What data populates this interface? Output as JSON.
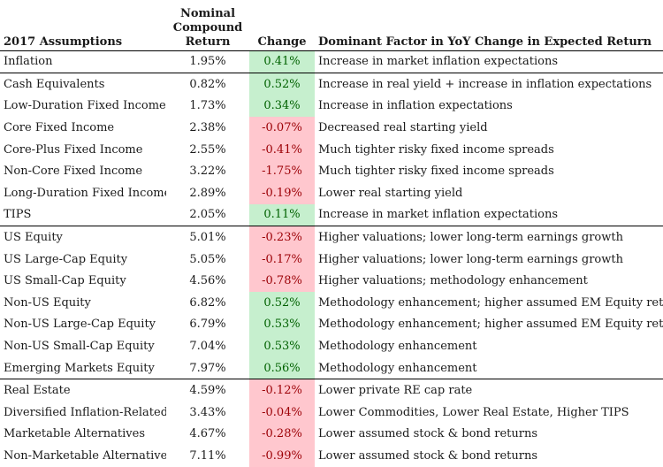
{
  "headers": {
    "assumptions": "2017 Assumptions",
    "return_line1": "Nominal",
    "return_line2": "Compound",
    "return_line3": "Return",
    "change": "Change",
    "factor": "Dominant Factor in YoY Change in Expected Return"
  },
  "colors": {
    "positive_fill": "#c6efce",
    "positive_text": "#006100",
    "negative_fill": "#ffc7ce",
    "negative_text": "#9c0006"
  },
  "rows": [
    {
      "name": "Inflation",
      "ret": "1.95%",
      "change": "0.41%",
      "sign": "pos",
      "factor": "Increase in market inflation expectations",
      "group_start": false
    },
    {
      "name": "Cash Equivalents",
      "ret": "0.82%",
      "change": "0.52%",
      "sign": "pos",
      "factor": "Increase in real yield + increase in inflation expectations",
      "group_start": true
    },
    {
      "name": "Low-Duration Fixed Income",
      "ret": "1.73%",
      "change": "0.34%",
      "sign": "pos",
      "factor": "Increase in inflation expectations",
      "group_start": false
    },
    {
      "name": "Core Fixed Income",
      "ret": "2.38%",
      "change": "-0.07%",
      "sign": "neg",
      "factor": "Decreased real starting yield",
      "group_start": false
    },
    {
      "name": "Core-Plus Fixed Income",
      "ret": "2.55%",
      "change": "-0.41%",
      "sign": "neg",
      "factor": "Much tighter risky fixed income spreads",
      "group_start": false
    },
    {
      "name": "Non-Core Fixed Income",
      "ret": "3.22%",
      "change": "-1.75%",
      "sign": "neg",
      "factor": "Much tighter risky fixed income spreads",
      "group_start": false
    },
    {
      "name": "Long-Duration Fixed Income",
      "ret": "2.89%",
      "change": "-0.19%",
      "sign": "neg",
      "factor": "Lower real starting yield",
      "group_start": false
    },
    {
      "name": "TIPS",
      "ret": "2.05%",
      "change": "0.11%",
      "sign": "pos",
      "factor": "Increase in market inflation expectations",
      "group_start": false
    },
    {
      "name": "US Equity",
      "ret": "5.01%",
      "change": "-0.23%",
      "sign": "neg",
      "factor": "Higher valuations; lower long-term earnings growth",
      "group_start": true
    },
    {
      "name": "US Large-Cap Equity",
      "ret": "5.05%",
      "change": "-0.17%",
      "sign": "neg",
      "factor": "Higher valuations; lower long-term earnings growth",
      "group_start": false
    },
    {
      "name": "US Small-Cap Equity",
      "ret": "4.56%",
      "change": "-0.78%",
      "sign": "neg",
      "factor": "Higher valuations; methodology enhancement",
      "group_start": false
    },
    {
      "name": "Non-US Equity",
      "ret": "6.82%",
      "change": "0.52%",
      "sign": "pos",
      "factor": "Methodology enhancement; higher assumed EM Equity return",
      "group_start": false
    },
    {
      "name": "Non-US Large-Cap Equity",
      "ret": "6.79%",
      "change": "0.53%",
      "sign": "pos",
      "factor": "Methodology enhancement; higher assumed EM Equity return",
      "group_start": false
    },
    {
      "name": "Non-US Small-Cap Equity",
      "ret": "7.04%",
      "change": "0.53%",
      "sign": "pos",
      "factor": "Methodology enhancement",
      "group_start": false
    },
    {
      "name": "Emerging Markets Equity",
      "ret": "7.97%",
      "change": "0.56%",
      "sign": "pos",
      "factor": "Methodology enhancement",
      "group_start": false
    },
    {
      "name": "Real Estate",
      "ret": "4.59%",
      "change": "-0.12%",
      "sign": "neg",
      "factor": "Lower private RE cap rate",
      "group_start": true
    },
    {
      "name": "Diversified Inflation-Related",
      "ret": "3.43%",
      "change": "-0.04%",
      "sign": "neg",
      "factor": "Lower Commodities, Lower Real Estate, Higher TIPS",
      "group_start": false
    },
    {
      "name": "Marketable Alternatives",
      "ret": "4.67%",
      "change": "-0.28%",
      "sign": "neg",
      "factor": "Lower assumed stock & bond returns",
      "group_start": false
    },
    {
      "name": "Non-Marketable Alternatives",
      "ret": "7.11%",
      "change": "-0.99%",
      "sign": "neg",
      "factor": "Lower assumed stock & bond returns",
      "group_start": false
    }
  ]
}
